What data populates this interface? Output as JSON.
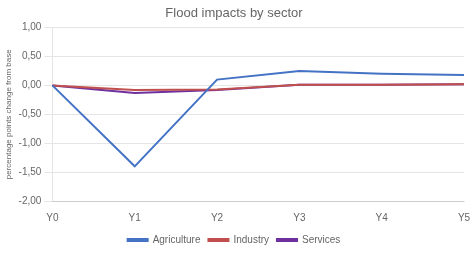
{
  "chart_data": {
    "type": "line",
    "title": "Flood impacts by sector",
    "ylabel": "percentage points change from base",
    "categories": [
      "Y0",
      "Y1",
      "Y2",
      "Y3",
      "Y4",
      "Y5"
    ],
    "series": [
      {
        "name": "Agriculture",
        "color": "#4472C4",
        "values": [
          0.0,
          -1.4,
          0.1,
          0.25,
          0.2,
          0.18
        ]
      },
      {
        "name": "Industry",
        "color": "#C0504D",
        "values": [
          0.0,
          -0.08,
          -0.07,
          0.01,
          0.01,
          0.02
        ]
      },
      {
        "name": "Services",
        "color": "#7030A0",
        "values": [
          0.0,
          -0.13,
          -0.08,
          0.01,
          0.01,
          0.02
        ]
      }
    ],
    "ylim": [
      -2.0,
      1.0
    ],
    "yticks": [
      {
        "value": -2.0,
        "label": "-2,00"
      },
      {
        "value": -1.5,
        "label": "-1,50"
      },
      {
        "value": -1.0,
        "label": "-1,00"
      },
      {
        "value": -0.5,
        "label": "-0,50"
      },
      {
        "value": 0.0,
        "label": "0,00"
      },
      {
        "value": 0.5,
        "label": "0,50"
      },
      {
        "value": 1.0,
        "label": "1,00"
      }
    ],
    "grid": true,
    "legend": "bottom"
  }
}
